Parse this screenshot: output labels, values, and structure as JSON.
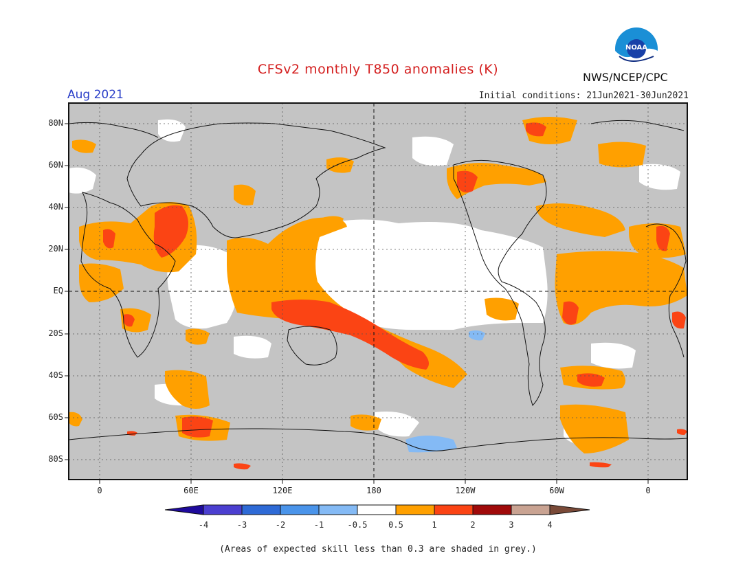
{
  "header": {
    "title": "CFSv2 monthly T850 anomalies (K)",
    "valid_month": "Aug 2021",
    "initial_conditions": "Initial conditions: 21Jun2021-30Jun2021",
    "agency": "NWS/NCEP/CPC",
    "logo_text": "NOAA"
  },
  "axes": {
    "lat_labels": [
      "80N",
      "60N",
      "40N",
      "20N",
      "EQ",
      "20S",
      "40S",
      "60S",
      "80S"
    ],
    "lon_labels": [
      "0",
      "60E",
      "120E",
      "180",
      "120W",
      "60W",
      "0"
    ]
  },
  "colorbar": {
    "tick_labels": [
      "-4",
      "-3",
      "-2",
      "-1",
      "-0.5",
      "0.5",
      "1",
      "2",
      "3",
      "4"
    ],
    "colors": [
      "#1e0a9c",
      "#4b3fd0",
      "#2e6ad6",
      "#4a94ea",
      "#84baf5",
      "#ffffff",
      "#ffa000",
      "#fb4414",
      "#a00a0a",
      "#c9a392",
      "#7a4a38"
    ]
  },
  "colors": {
    "skill_grey": "#c4c4c4",
    "neutral": "#ffffff",
    "warm1": "#ffa000",
    "warm2": "#fb4414",
    "cool1": "#84baf5"
  },
  "footnote": "(Areas of expected skill less than 0.3 are shaded in grey.)"
}
